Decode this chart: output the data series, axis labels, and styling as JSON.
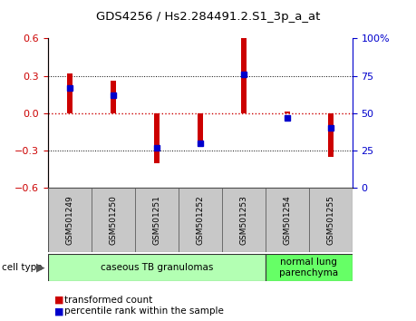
{
  "title": "GDS4256 / Hs2.284491.2.S1_3p_a_at",
  "samples": [
    "GSM501249",
    "GSM501250",
    "GSM501251",
    "GSM501252",
    "GSM501253",
    "GSM501254",
    "GSM501255"
  ],
  "transformed_counts": [
    0.32,
    0.26,
    -0.4,
    -0.22,
    0.6,
    0.01,
    -0.35
  ],
  "percentile_ranks": [
    67,
    62,
    27,
    30,
    76,
    47,
    40
  ],
  "cell_types": [
    {
      "label": "caseous TB granulomas",
      "samples": [
        0,
        1,
        2,
        3,
        4
      ],
      "color": "#b3ffb3"
    },
    {
      "label": "normal lung\nparenchyma",
      "samples": [
        5,
        6
      ],
      "color": "#66ff66"
    }
  ],
  "bar_color_red": "#cc0000",
  "bar_color_blue": "#0000cc",
  "ylim_left": [
    -0.6,
    0.6
  ],
  "ylim_right": [
    0,
    100
  ],
  "yticks_left": [
    -0.6,
    -0.3,
    0.0,
    0.3,
    0.6
  ],
  "yticks_right": [
    0,
    25,
    50,
    75,
    100
  ],
  "ytick_labels_right": [
    "0",
    "25",
    "50",
    "75",
    "100%"
  ],
  "zero_line_color": "#cc0000",
  "bg_color": "#ffffff",
  "sample_bg_color": "#c8c8c8",
  "bar_width": 0.12,
  "legend_labels": [
    "transformed count",
    "percentile rank within the sample"
  ]
}
